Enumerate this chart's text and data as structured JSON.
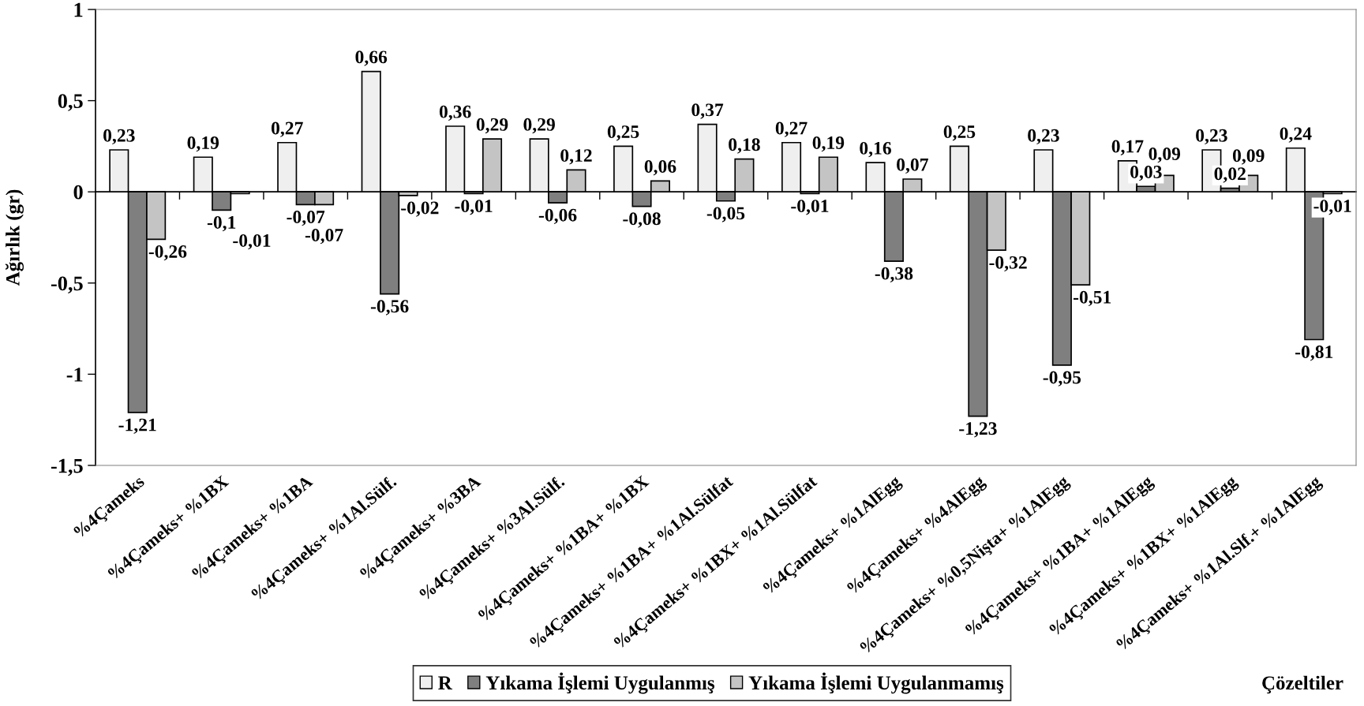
{
  "chart_data": {
    "type": "bar",
    "xlabel": "Çözeltiler",
    "ylabel": "Ağırlık (gr)",
    "categories": [
      "%4Çameks",
      "%4Çameks+ %1BX",
      "%4Çameks+ %1BA",
      "%4Çameks+ %1Al.Sülf.",
      "%4Çameks+ %3BA",
      "%4Çameks+ %3Al.Sülf.",
      "%4Çameks+ %1BA+ %1BX",
      "%4Çameks+ %1BA+ %1Al.Sülfat",
      "%4Çameks+ %1BX+ %1Al.Sülfat",
      "%4Çameks+ %1AlEgg",
      "%4Çameks+ %4AlEgg",
      "%4Çameks+ %0,5Nişta+ %1AlEgg",
      "%4Çameks+ %1BA+ %1AlEgg",
      "%4Çameks+ %1BX+ %1AlEgg",
      "%4Çameks+ %1Al.Slf.+ %1AlEgg"
    ],
    "series": [
      {
        "name": "R",
        "color": "#efefef",
        "values": [
          0.23,
          0.19,
          0.27,
          0.66,
          0.36,
          0.29,
          0.25,
          0.37,
          0.27,
          0.16,
          0.25,
          0.23,
          0.17,
          0.23,
          0.24
        ],
        "value_labels": [
          "0,23",
          "0,19",
          "0,27",
          "0,66",
          "0,36",
          "0,29",
          "0,25",
          "0,37",
          "0,27",
          "0,16",
          "0,25",
          "0,23",
          "0,17",
          "0,23",
          "0,24"
        ]
      },
      {
        "name": "Yıkama İşlemi Uygulanmış",
        "color": "#7f7f7f",
        "values": [
          -1.21,
          -0.1,
          -0.07,
          -0.56,
          -0.01,
          -0.06,
          -0.08,
          -0.05,
          -0.01,
          -0.38,
          -1.23,
          -0.95,
          0.03,
          0.02,
          -0.81
        ],
        "value_labels": [
          "-1,21",
          "-0,1",
          "-0,07",
          "-0,56",
          "-0,01",
          "-0,06",
          "-0,08",
          "-0,05",
          "-0,01",
          "-0,38",
          "-1,23",
          "-0,95",
          "0,03",
          "0,02",
          "-0,81"
        ]
      },
      {
        "name": "Yıkama İşlemi Uygulanmamış",
        "color": "#c4c4c4",
        "values": [
          -0.26,
          -0.01,
          -0.07,
          -0.02,
          0.29,
          0.12,
          0.06,
          0.18,
          0.19,
          0.07,
          -0.32,
          -0.51,
          0.09,
          0.09,
          -0.01
        ],
        "value_labels": [
          "-0,26",
          "-0,01",
          "-0,07",
          "-0,02",
          "0,29",
          "0,12",
          "0,06",
          "0,18",
          "0,19",
          "0,07",
          "-0,32",
          "-0,51",
          "0,09",
          "0,09",
          "-0,01"
        ]
      }
    ],
    "ylim": [
      -1.5,
      1
    ],
    "yticks": [
      {
        "value": -1.5,
        "label": "-1,5"
      },
      -1,
      {
        "value": -0.5,
        "label": "-0,5"
      },
      0,
      {
        "value": 0.5,
        "label": "0,5"
      },
      1
    ],
    "legend": "bottom"
  }
}
